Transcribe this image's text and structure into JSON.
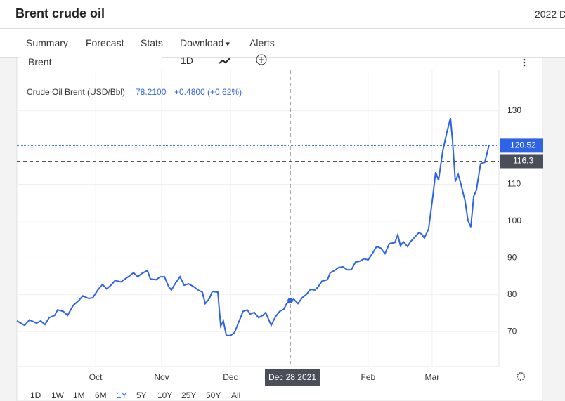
{
  "header": {
    "title": "Brent crude oil",
    "right_text": "2022 D"
  },
  "tabs": [
    "Summary",
    "Forecast",
    "Stats",
    "Download",
    "Alerts"
  ],
  "toolbar": {
    "symbol": "Brent",
    "interval": "1D"
  },
  "ranges": [
    "1D",
    "1W",
    "1M",
    "6M",
    "1Y",
    "5Y",
    "10Y",
    "25Y",
    "50Y",
    "All"
  ],
  "active_range": "1Y",
  "chart_data": {
    "type": "line",
    "legend": {
      "name": "Crude Oil Brent (USD/Bbl)",
      "price": "78.2100",
      "change": "+0.4800 (+0.62%)"
    },
    "x": [
      0,
      3.5,
      5.7,
      8.9,
      10.8,
      12.7,
      14.6,
      17.1,
      18.4,
      21.0,
      22.9,
      25.4,
      27.9,
      29.8,
      32.4,
      34.3,
      36.8,
      38.7,
      40.6,
      42.5,
      44.4,
      47.0,
      48.9,
      50.8,
      52.7,
      54.6,
      56.5,
      59.0,
      60.3,
      62.9,
      64.8,
      66.7,
      68.6,
      69.8,
      71.7,
      73.7,
      75.6,
      77.5,
      79.4,
      81.9,
      83.8,
      85.1,
      87.0,
      88.3,
      90.8,
      92.1,
      93.3,
      94.6,
      96.5,
      98.4,
      100.3,
      102.2,
      104.1,
      105.4,
      107.3,
      109.2,
      111.1,
      112.4,
      114.9,
      116.8,
      118.7,
      120.6,
      121.9,
      123.5,
      125.1,
      127.0,
      128.9,
      130.8,
      132.7,
      134.6,
      135.9,
      137.8,
      140.3,
      141.6,
      143.5,
      145.4,
      147.3,
      149.2,
      151.1,
      153.0,
      154.9,
      156.8,
      158.7,
      160.6,
      162.5,
      164.4,
      166.3,
      168.3,
      170.8,
      172.1,
      173.3,
      174.6,
      176.5,
      177.8,
      179.7,
      181.6,
      182.9,
      184.1,
      186.0,
      187.9,
      189.2,
      190.5,
      192.4,
      194.3,
      195.9,
      196.8,
      198.1,
      199.4,
      200.6,
      202.5,
      203.8,
      205.1,
      206.4,
      207.6,
      209.5,
      211.4,
      213.3
    ],
    "series": [
      {
        "name": "Crude Oil Brent (USD/Bbl)",
        "color": "#2f63e6",
        "values": [
          72.9,
          71.7,
          73.2,
          72.3,
          72.9,
          71.9,
          73.8,
          74.4,
          75.9,
          75.5,
          74.4,
          77.1,
          78.4,
          79.7,
          79.0,
          79.2,
          81.5,
          82.8,
          81.6,
          82.6,
          83.9,
          83.5,
          84.3,
          85.1,
          86.0,
          84.9,
          85.8,
          86.6,
          84.3,
          84.1,
          84.9,
          84.9,
          82.2,
          81.3,
          83.2,
          84.9,
          82.6,
          83.0,
          82.4,
          81.3,
          80.7,
          77.6,
          79.0,
          80.9,
          80.7,
          71.5,
          72.9,
          69.0,
          68.9,
          69.8,
          72.7,
          75.5,
          75.9,
          74.8,
          75.2,
          73.8,
          74.4,
          75.2,
          71.7,
          74.0,
          75.5,
          76.1,
          77.6,
          78.4,
          78.8,
          77.6,
          79.2,
          80.1,
          81.5,
          81.3,
          82.0,
          83.7,
          84.1,
          86.0,
          86.6,
          87.4,
          87.6,
          86.8,
          86.8,
          88.9,
          89.1,
          89.8,
          89.5,
          91.2,
          93.1,
          92.7,
          91.2,
          93.9,
          94.2,
          96.3,
          93.3,
          94.4,
          93.1,
          94.4,
          95.6,
          96.9,
          96.5,
          95.4,
          97.9,
          106.6,
          113.3,
          111.1,
          119.0,
          124.2,
          128.0,
          122.1,
          110.8,
          112.7,
          110.1,
          105.5,
          100.2,
          98.4,
          106.8,
          108.4,
          115.6,
          116.0,
          120.6
        ]
      }
    ],
    "xlim": [
      0,
      217.8
    ],
    "xticks": [
      {
        "value": 35.6,
        "label": "Oct"
      },
      {
        "value": 65.4,
        "label": "Nov"
      },
      {
        "value": 96.5,
        "label": "Dec"
      },
      {
        "value": 158.7,
        "label": "Feb"
      },
      {
        "value": 187.6,
        "label": "Mar"
      }
    ],
    "ylim": [
      60.5,
      141
    ],
    "yticks": [
      70,
      80,
      90,
      100,
      110,
      120,
      130
    ],
    "grid": true,
    "last_price": 120.52,
    "crosshair": {
      "x": 123.5,
      "y": 116.3,
      "x_label": "Dec 28 2021"
    }
  }
}
